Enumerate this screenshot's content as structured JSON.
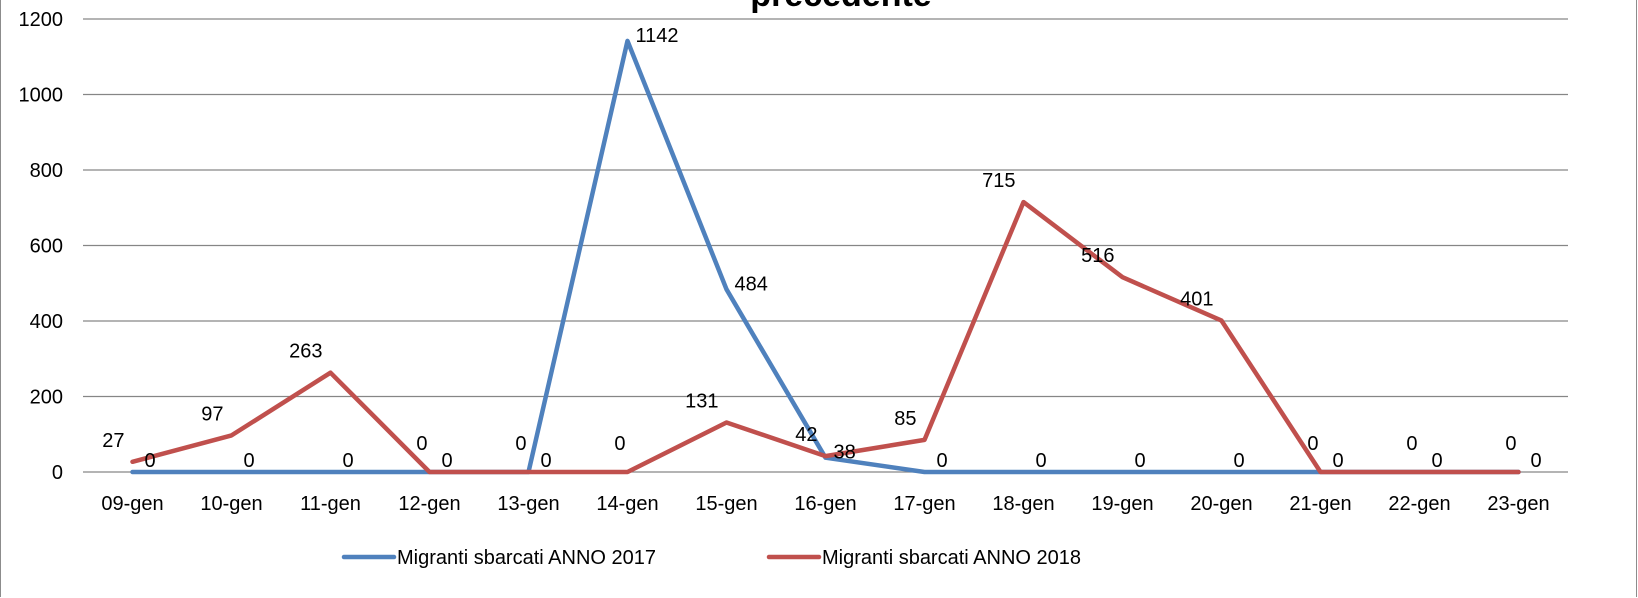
{
  "chart_data": {
    "type": "line",
    "title": "precedente",
    "categories": [
      "09-gen",
      "10-gen",
      "11-gen",
      "12-gen",
      "13-gen",
      "14-gen",
      "15-gen",
      "16-gen",
      "17-gen",
      "18-gen",
      "19-gen",
      "20-gen",
      "21-gen",
      "22-gen",
      "23-gen"
    ],
    "y_ticks": [
      "0",
      "200",
      "400",
      "600",
      "800",
      "1000",
      "1200"
    ],
    "ylim": [
      0,
      1200
    ],
    "grid": true,
    "legend_position": "bottom",
    "series": [
      {
        "name": "Migranti sbarcati ANNO 2017",
        "color": "#4F81BD",
        "values": [
          0,
          0,
          0,
          0,
          0,
          1142,
          484,
          38,
          0,
          0,
          0,
          0,
          0,
          0,
          0
        ]
      },
      {
        "name": "Migranti sbarcati ANNO 2018",
        "color": "#C0504D",
        "values": [
          27,
          97,
          263,
          0,
          0,
          0,
          131,
          42,
          85,
          715,
          516,
          401,
          0,
          0,
          0
        ]
      }
    ]
  }
}
